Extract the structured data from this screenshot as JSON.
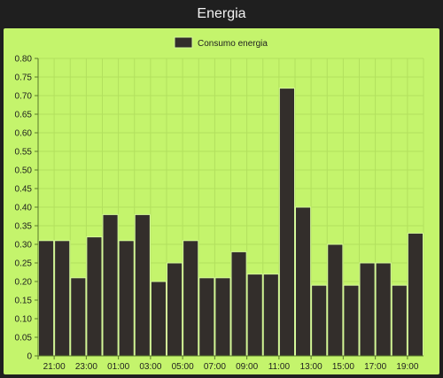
{
  "window": {
    "title": "Energia"
  },
  "colors": {
    "background": "#1f1f1f",
    "panel": "#c4f46c",
    "bar_fill": "#332e2b",
    "bar_stroke": "#d5f99a",
    "grid": "#b2e05e",
    "axis": "#5a7a2a",
    "text": "#1e1e1e"
  },
  "chart_data": {
    "type": "bar",
    "title": "",
    "xlabel": "",
    "ylabel": "",
    "ylim": [
      0,
      0.8
    ],
    "yticks": [
      "0",
      "0.05",
      "0.10",
      "0.15",
      "0.20",
      "0.25",
      "0.30",
      "0.35",
      "0.40",
      "0.45",
      "0.50",
      "0.55",
      "0.60",
      "0.65",
      "0.70",
      "0.75",
      "0.80"
    ],
    "xtick_labels": [
      "21:00",
      "23:00",
      "01:00",
      "03:00",
      "05:00",
      "07:00",
      "09:00",
      "11:00",
      "13:00",
      "15:00",
      "17:00",
      "19:00"
    ],
    "grid": true,
    "legend": "top-center",
    "series": [
      {
        "name": "Consumo energia",
        "values": [
          0.31,
          0.31,
          0.21,
          0.32,
          0.38,
          0.31,
          0.38,
          0.2,
          0.25,
          0.31,
          0.21,
          0.21,
          0.28,
          0.22,
          0.22,
          0.72,
          0.4,
          0.19,
          0.3,
          0.19,
          0.25,
          0.25,
          0.19,
          0.33
        ]
      }
    ]
  }
}
